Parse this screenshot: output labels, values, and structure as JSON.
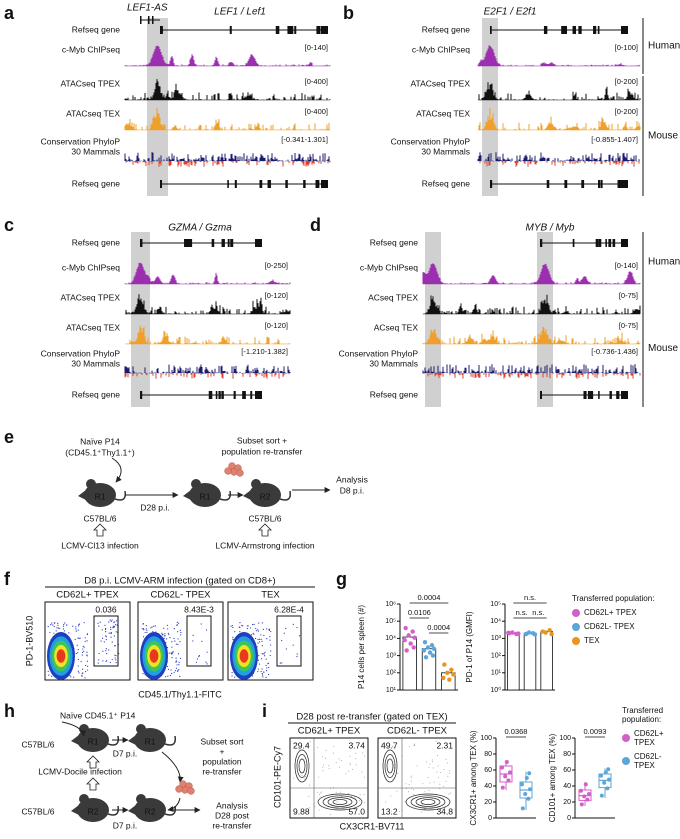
{
  "panels": {
    "a": {
      "letter": "a",
      "genes": [
        "LEF1-AS",
        "LEF1 / Lef1"
      ],
      "tracks": [
        "Refseq gene",
        "c-Myb ChIPseq",
        "ATACseq TPEX",
        "ATACseq TEX",
        "Conservation PhyloP",
        "30 Mammals",
        "Refseq gene"
      ],
      "ranges": [
        "[0-140]",
        "[0-400]",
        "[0-400]",
        "[-0.341-1.301]"
      ]
    },
    "b": {
      "letter": "b",
      "genes": [
        "E2F1 / E2f1"
      ],
      "tracks": [
        "Refseq gene",
        "c-Myb ChIPseq",
        "ATACseq TPEX",
        "ATACseq TEX",
        "Conservation PhyloP",
        "30 Mammals",
        "Refseq gene"
      ],
      "ranges": [
        "[0-100]",
        "[0-200]",
        "[0-200]",
        "[-0.855-1.407]"
      ],
      "species": [
        "Human",
        "Mouse"
      ]
    },
    "c": {
      "letter": "c",
      "genes": [
        "GZMA / Gzma"
      ],
      "tracks": [
        "Refseq gene",
        "c-Myb ChIPseq",
        "ATACseq TPEX",
        "ATACseq TEX",
        "Conservation PhyloP",
        "30 Mammals",
        "Refseq gene"
      ],
      "ranges": [
        "[0-250]",
        "[0-120]",
        "[0-120]",
        "[-1.210-1.382]"
      ]
    },
    "d": {
      "letter": "d",
      "genes": [
        "MYB / Myb"
      ],
      "tracks": [
        "Refseq gene",
        "c-Myb ChIPseq",
        "ACseq TPEX",
        "ACseq TEX",
        "Conservation PhyloP",
        "30 Mammals",
        "Refseq gene"
      ],
      "ranges": [
        "[0-140]",
        "[0-75]",
        "[0-75]",
        "[-0.736-1.436]"
      ],
      "species": [
        "Human",
        "Mouse"
      ]
    },
    "e": {
      "letter": "e",
      "texts": [
        "Naïve P14",
        "(CD45.1⁺Thy1.1⁺)",
        "R1",
        "C57BL/6",
        "LCMV-Cl13 infection",
        "D28 p.i.",
        "Subset sort +",
        "population re-transfer",
        "R1",
        "R2",
        "C57BL/6",
        "LCMV-Armstrong infection",
        "Analysis",
        "D8 p.i."
      ]
    },
    "f": {
      "letter": "f",
      "title": "D8 p.i. LCMV-ARM infection (gated on CD8+)",
      "plots": [
        {
          "header": "CD62L+ TPEX",
          "gate": "0.036"
        },
        {
          "header": "CD62L- TPEX",
          "gate": "8.43E-3"
        },
        {
          "header": "TEX",
          "gate": "6.28E-4"
        }
      ],
      "ylabel": "PD-1-BV510",
      "xlabel": "CD45.1/Thy1.1-FITC"
    },
    "g": {
      "letter": "g"
    },
    "h": {
      "letter": "h",
      "texts": [
        "Naïve CD45.1⁺ P14",
        "C57BL/6",
        "R1",
        "D7 p.i.",
        "R1",
        "LCMV-Docile infection",
        "C57BL/6",
        "R2",
        "D7 p.i.",
        "R2",
        "Subset sort",
        "+",
        "population",
        "re-transfer",
        "Analysis",
        "D28 post",
        "re-transfer"
      ]
    },
    "i": {
      "letter": "i",
      "title": "D28 post re-transfer (gated on TEX)",
      "plots": [
        {
          "header": "CD62L+ TPEX",
          "quadrants": [
            "29.4",
            "3.74",
            "9.88",
            "57.0"
          ]
        },
        {
          "header": "CD62L- TPEX",
          "quadrants": [
            "49.7",
            "2.31",
            "13.2",
            "34.8"
          ]
        }
      ],
      "ylabel": "CD101-PE-Cy7",
      "xlabel": "CX3CR1-BV711"
    }
  },
  "chart_data": [
    {
      "type": "bar",
      "log_scale": true,
      "ylabel": "P14 cells per spleen (#)",
      "ylim": [
        10,
        1000000
      ],
      "yticks": [
        {
          "value": 10,
          "label": "10¹"
        },
        {
          "value": 100,
          "label": "10²"
        },
        {
          "value": 1000,
          "label": "10³"
        },
        {
          "value": 10000,
          "label": "10⁴"
        },
        {
          "value": 100000,
          "label": "10⁵"
        },
        {
          "value": 1000000,
          "label": "10⁶"
        }
      ],
      "legend_title": "Transferred population:",
      "series": [
        {
          "name": "CD62L+ TPEX",
          "color": "#d35fc8",
          "values": [
            12000
          ],
          "points": [
            40000,
            25000,
            15000,
            11000,
            8000,
            5000,
            3000,
            2000
          ]
        },
        {
          "name": "CD62L- TPEX",
          "color": "#5ea6d9",
          "values": [
            2500
          ],
          "points": [
            6000,
            4000,
            3000,
            2500,
            2000,
            1500,
            1000,
            800
          ]
        },
        {
          "name": "TEX",
          "color": "#e8951e",
          "values": [
            100
          ],
          "points": [
            300,
            150,
            100,
            80,
            50,
            40
          ]
        }
      ],
      "annotations": [
        "0.0004",
        "0.0106",
        "0.0004"
      ]
    },
    {
      "type": "bar",
      "log_scale": true,
      "ylabel": "PD-1 of P14 (GMFI)",
      "ylim": [
        1,
        100000
      ],
      "yticks": [
        {
          "value": 1,
          "label": "10⁰"
        },
        {
          "value": 10,
          "label": "10¹"
        },
        {
          "value": 100,
          "label": "10²"
        },
        {
          "value": 1000,
          "label": "10³"
        },
        {
          "value": 10000,
          "label": "10⁴"
        },
        {
          "value": 100000,
          "label": "10⁵"
        }
      ],
      "series": [
        {
          "color": "#d35fc8",
          "values": [
            2000
          ],
          "points": [
            2000,
            1800,
            2200,
            1900,
            2100
          ]
        },
        {
          "color": "#5ea6d9",
          "values": [
            2000
          ],
          "points": [
            1800,
            2000,
            2200,
            1700
          ]
        },
        {
          "color": "#e8951e",
          "values": [
            2500
          ],
          "points": [
            2500,
            3000,
            2200,
            1800
          ]
        }
      ],
      "annotations": [
        "n.s.",
        "n.s.",
        "n.s."
      ]
    },
    {
      "type": "box",
      "ylabel": "CX3CR1+ among TEX (%)",
      "ylim": [
        0,
        100
      ],
      "yticks": [
        0,
        20,
        40,
        60,
        80,
        100
      ],
      "legend_title": "Transferred population:",
      "series": [
        {
          "name": "CD62L+ TPEX",
          "color": "#d35fc8",
          "min": 35,
          "q1": 45,
          "median": 55,
          "q3": 65,
          "max": 72,
          "points": [
            38,
            47,
            52,
            57,
            63,
            70
          ]
        },
        {
          "name": "CD62L- TPEX",
          "color": "#5ea6d9",
          "min": 10,
          "q1": 25,
          "median": 35,
          "q3": 45,
          "max": 58,
          "points": [
            12,
            24,
            30,
            36,
            42,
            50,
            56
          ]
        }
      ],
      "annotations": [
        "0.0368"
      ]
    },
    {
      "type": "box",
      "ylabel": "CD101+ among TEX (%)",
      "ylim": [
        0,
        100
      ],
      "yticks": [
        0,
        20,
        40,
        60,
        80,
        100
      ],
      "series": [
        {
          "color": "#d35fc8",
          "min": 15,
          "q1": 22,
          "median": 28,
          "q3": 35,
          "max": 45,
          "points": [
            17,
            23,
            27,
            30,
            34,
            42
          ]
        },
        {
          "color": "#5ea6d9",
          "min": 25,
          "q1": 38,
          "median": 47,
          "q3": 55,
          "max": 62,
          "points": [
            28,
            37,
            44,
            48,
            53,
            57,
            61
          ]
        }
      ],
      "annotations": [
        "0.0093"
      ]
    }
  ]
}
